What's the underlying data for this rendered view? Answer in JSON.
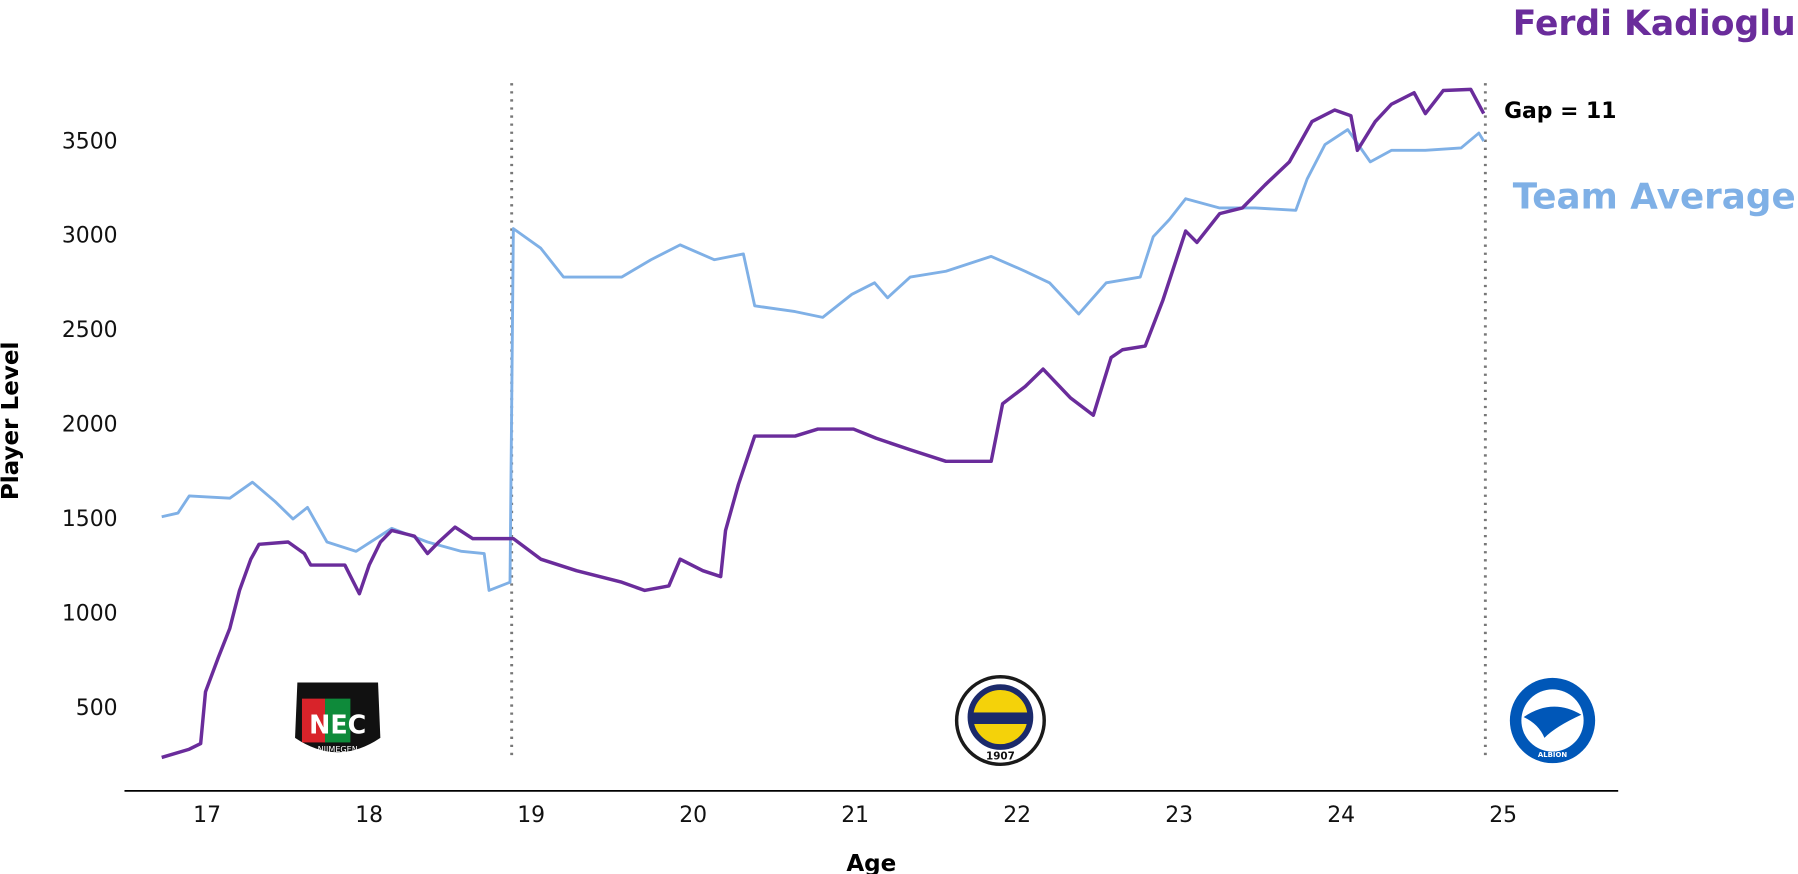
{
  "chart_data": {
    "type": "line",
    "x_label": "Age",
    "y_label": "Player Level",
    "annotation": "Gap = 11",
    "xlim": [
      16.49,
      25.71
    ],
    "ylim": [
      67,
      3880
    ],
    "xticks": [
      17,
      18,
      19,
      20,
      21,
      22,
      23,
      24,
      25
    ],
    "yticks": [
      500,
      1000,
      1500,
      2000,
      2500,
      3000,
      3500
    ],
    "vlines": [
      18.88,
      24.89
    ],
    "vline_color": "#777777",
    "logos": [
      "NEC",
      "NIJMEGEN",
      "1907",
      "ALBION"
    ],
    "series": [
      {
        "name": "Team Average",
        "color": "#7fb0e6",
        "x": [
          16.72,
          16.82,
          16.89,
          17.14,
          17.28,
          17.42,
          17.53,
          17.62,
          17.74,
          17.92,
          18.14,
          18.36,
          18.57,
          18.71,
          18.74,
          18.87,
          18.89,
          19.06,
          19.2,
          19.56,
          19.74,
          19.92,
          20.13,
          20.31,
          20.38,
          20.63,
          20.8,
          20.98,
          21.12,
          21.2,
          21.34,
          21.56,
          21.84,
          22.05,
          22.2,
          22.38,
          22.55,
          22.76,
          22.84,
          22.94,
          23.04,
          23.25,
          23.47,
          23.72,
          23.79,
          23.9,
          24.04,
          24.18,
          24.31,
          24.52,
          24.74,
          24.85,
          24.88
        ],
        "values": [
          1518,
          1537,
          1628,
          1616,
          1701,
          1598,
          1506,
          1567,
          1384,
          1335,
          1457,
          1384,
          1335,
          1323,
          1128,
          1171,
          3043,
          2939,
          2787,
          2787,
          2878,
          2957,
          2878,
          2909,
          2634,
          2604,
          2573,
          2695,
          2756,
          2677,
          2787,
          2817,
          2896,
          2817,
          2756,
          2591,
          2756,
          2787,
          3000,
          3091,
          3201,
          3152,
          3152,
          3140,
          3305,
          3488,
          3567,
          3396,
          3457,
          3457,
          3470,
          3549,
          3506
        ]
      },
      {
        "name": "Ferdi Kadioglu",
        "color": "#6a2c9b",
        "x": [
          16.72,
          16.89,
          16.96,
          16.99,
          17.07,
          17.14,
          17.2,
          17.27,
          17.32,
          17.5,
          17.6,
          17.64,
          17.85,
          17.94,
          18.0,
          18.07,
          18.14,
          18.28,
          18.36,
          18.43,
          18.53,
          18.64,
          18.89,
          19.06,
          19.28,
          19.56,
          19.7,
          19.85,
          19.92,
          20.06,
          20.17,
          20.2,
          20.28,
          20.38,
          20.63,
          20.77,
          20.99,
          21.13,
          21.34,
          21.56,
          21.84,
          21.91,
          22.05,
          22.16,
          22.33,
          22.47,
          22.58,
          22.65,
          22.79,
          22.9,
          23.04,
          23.11,
          23.25,
          23.39,
          23.53,
          23.68,
          23.82,
          23.96,
          24.06,
          24.1,
          24.21,
          24.31,
          24.45,
          24.52,
          24.63,
          24.8,
          24.88
        ],
        "values": [
          244,
          287,
          317,
          591,
          774,
          927,
          1128,
          1293,
          1372,
          1384,
          1323,
          1262,
          1262,
          1110,
          1262,
          1384,
          1445,
          1415,
          1323,
          1384,
          1463,
          1402,
          1402,
          1293,
          1232,
          1171,
          1128,
          1152,
          1293,
          1232,
          1201,
          1445,
          1689,
          1945,
          1945,
          1982,
          1982,
          1933,
          1872,
          1811,
          1811,
          2116,
          2207,
          2299,
          2146,
          2055,
          2360,
          2402,
          2421,
          2665,
          3030,
          2970,
          3122,
          3152,
          3274,
          3396,
          3610,
          3671,
          3640,
          3457,
          3610,
          3701,
          3762,
          3652,
          3774,
          3780,
          3652
        ]
      }
    ]
  }
}
